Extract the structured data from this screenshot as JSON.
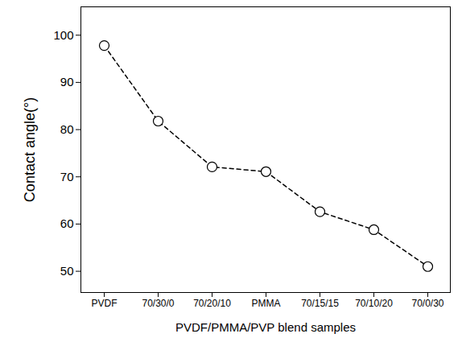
{
  "chart_data": {
    "type": "line",
    "xlabel": "PVDF/PMMA/PVP blend samples",
    "ylabel": "Contact angle(°)",
    "categories": [
      "PVDF",
      "70/30/0",
      "70/20/10",
      "PMMA",
      "70/15/15",
      "70/10/20",
      "70/0/30"
    ],
    "values": [
      97.8,
      81.8,
      72.1,
      71.1,
      62.6,
      58.8,
      51.0
    ],
    "color": "#000000",
    "marker": "circle",
    "line_style": "dashed",
    "ylim": [
      45.5,
      106
    ],
    "yticks": [
      50,
      60,
      70,
      80,
      90,
      100
    ],
    "grid": false
  }
}
